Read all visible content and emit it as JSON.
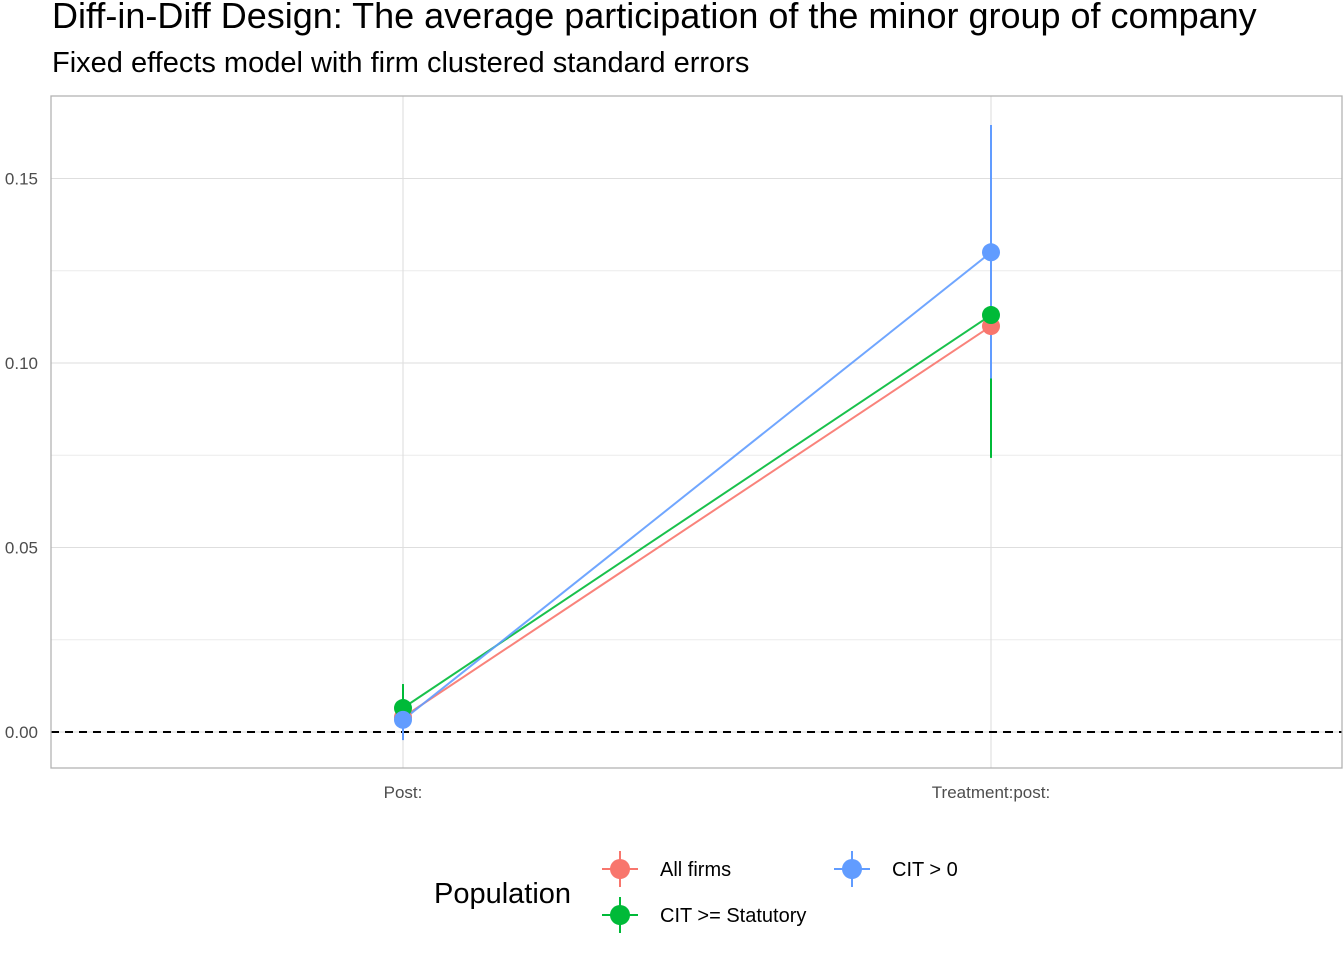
{
  "chart_data": {
    "type": "scatter",
    "title": "Diff-in-Diff Design: The average participation of the minor group of company",
    "subtitle": "Fixed effects model with firm clustered standard errors",
    "xlabel": "",
    "ylabel": "",
    "categories": [
      "Post:",
      "Treatment:post:"
    ],
    "ylim": [
      -0.01,
      0.172
    ],
    "y_ticks": [
      0.0,
      0.05,
      0.1,
      0.15
    ],
    "y_tick_labels": [
      "0.00",
      "0.05",
      "0.10",
      "0.15"
    ],
    "reference_line": {
      "y": 0,
      "style": "dashed"
    },
    "connect_points": true,
    "error_bars": true,
    "grid": true,
    "legend": {
      "title": "Population",
      "position": "bottom"
    },
    "series": [
      {
        "name": "All firms",
        "color": "#F8766D",
        "values": [
          0.004,
          0.11
        ],
        "lower": [
          0.001,
          0.096
        ],
        "upper": [
          0.008,
          0.124
        ]
      },
      {
        "name": "CIT >= Statutory",
        "color": "#00BA38",
        "values": [
          0.0065,
          0.113
        ],
        "lower": [
          0.0003,
          0.0743
        ],
        "upper": [
          0.013,
          0.1517
        ]
      },
      {
        "name": "CIT > 0",
        "color": "#619CFF",
        "values": [
          0.0033,
          0.13
        ],
        "lower": [
          -0.0022,
          0.0958
        ],
        "upper": [
          0.0088,
          0.1645
        ]
      }
    ]
  }
}
